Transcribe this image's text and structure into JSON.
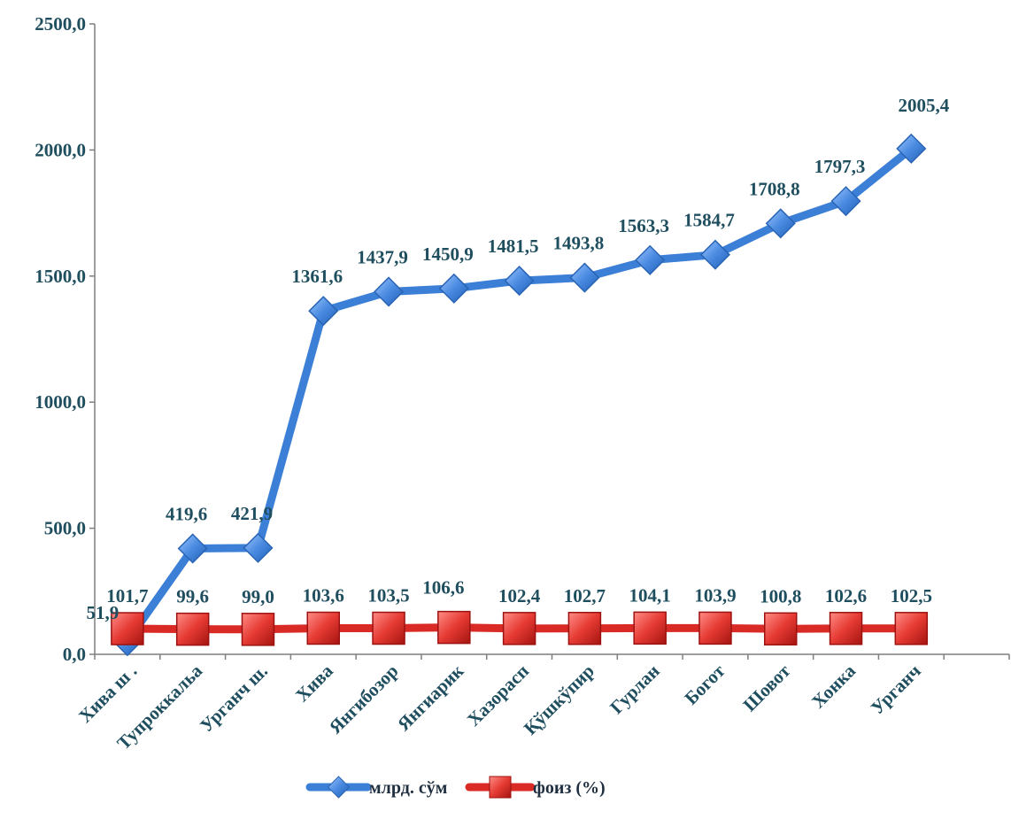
{
  "chart_data": {
    "type": "line",
    "title": "",
    "xlabel": "",
    "ylabel": "",
    "categories": [
      "Хива ш .",
      "Тупроккальа",
      "Урганч ш.",
      "Хива",
      "Янгибозор",
      "Янгиарик",
      "Хазорасп",
      "Қўшкўпир",
      "Гурлан",
      "Богот",
      "Шовот",
      "Хонка",
      "Урганч"
    ],
    "ylim": [
      0,
      2500
    ],
    "yticks": [
      0,
      500,
      1000,
      1500,
      2000,
      2500
    ],
    "ytick_labels": [
      "0,0",
      "500,0",
      "1000,0",
      "1500,0",
      "2000,0",
      "2500,0"
    ],
    "grid": false,
    "legend_position": "bottom",
    "series": [
      {
        "name": "млрд. сўм",
        "color": "#3c7fd6",
        "marker": "diamond",
        "values": [
          51.9,
          419.6,
          421.9,
          1361.6,
          1437.9,
          1450.9,
          1481.5,
          1493.8,
          1563.3,
          1584.7,
          1708.8,
          1797.3,
          2005.4
        ],
        "labels": [
          "51,9",
          "419,6",
          "421,9",
          "1361,6",
          "1437,9",
          "1450,9",
          "1481,5",
          "1493,8",
          "1563,3",
          "1584,7",
          "1708,8",
          "1797,3",
          "2005,4"
        ]
      },
      {
        "name": "фоиз (%)",
        "color": "#d92a26",
        "marker": "square",
        "values": [
          101.7,
          99.6,
          99.0,
          103.6,
          103.5,
          106.6,
          102.4,
          102.7,
          104.1,
          103.9,
          100.8,
          102.6,
          102.5
        ],
        "labels": [
          "101,7",
          "99,6",
          "99,0",
          "103,6",
          "103,5",
          "106,6",
          "102,4",
          "102,7",
          "104,1",
          "103,9",
          "100,8",
          "102,6",
          "102,5"
        ]
      }
    ]
  }
}
